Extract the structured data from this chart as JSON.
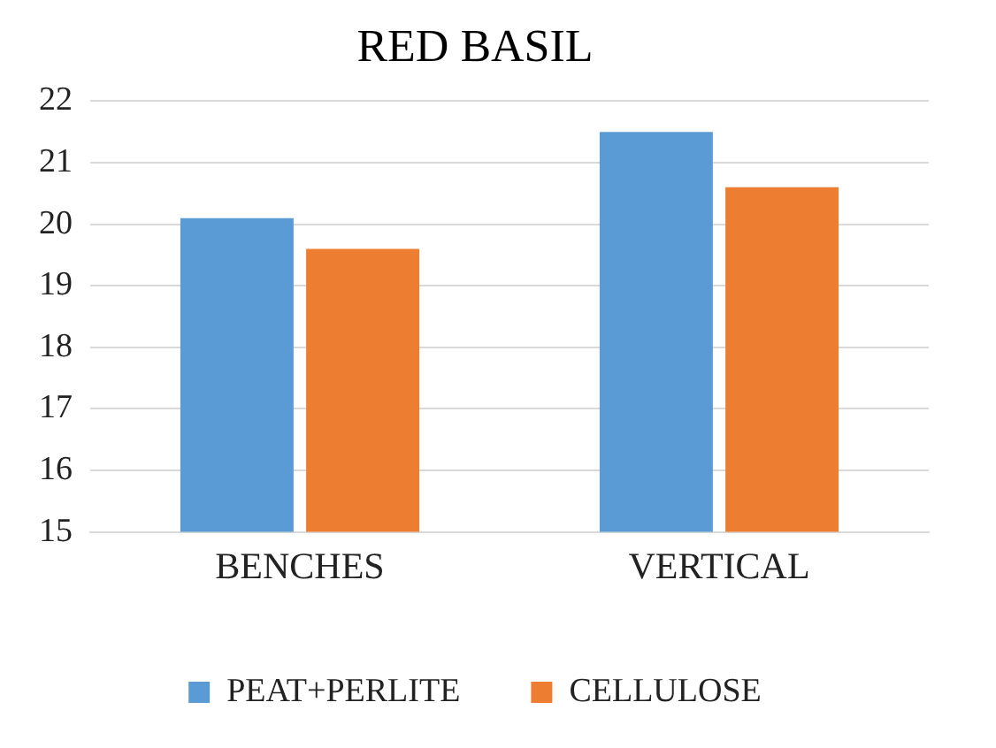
{
  "chart_data": {
    "type": "bar",
    "title": "RED BASIL",
    "categories": [
      "BENCHES",
      "VERTICAL"
    ],
    "series": [
      {
        "name": "PEAT+PERLITE",
        "color": "#5b9bd5",
        "values": [
          20.1,
          21.5
        ]
      },
      {
        "name": "CELLULOSE",
        "color": "#ed7d31",
        "values": [
          19.6,
          20.6
        ]
      }
    ],
    "ylim": [
      15,
      22
    ],
    "yticks": [
      15,
      16,
      17,
      18,
      19,
      20,
      21,
      22
    ],
    "grid": "y",
    "legend": "bottom"
  }
}
